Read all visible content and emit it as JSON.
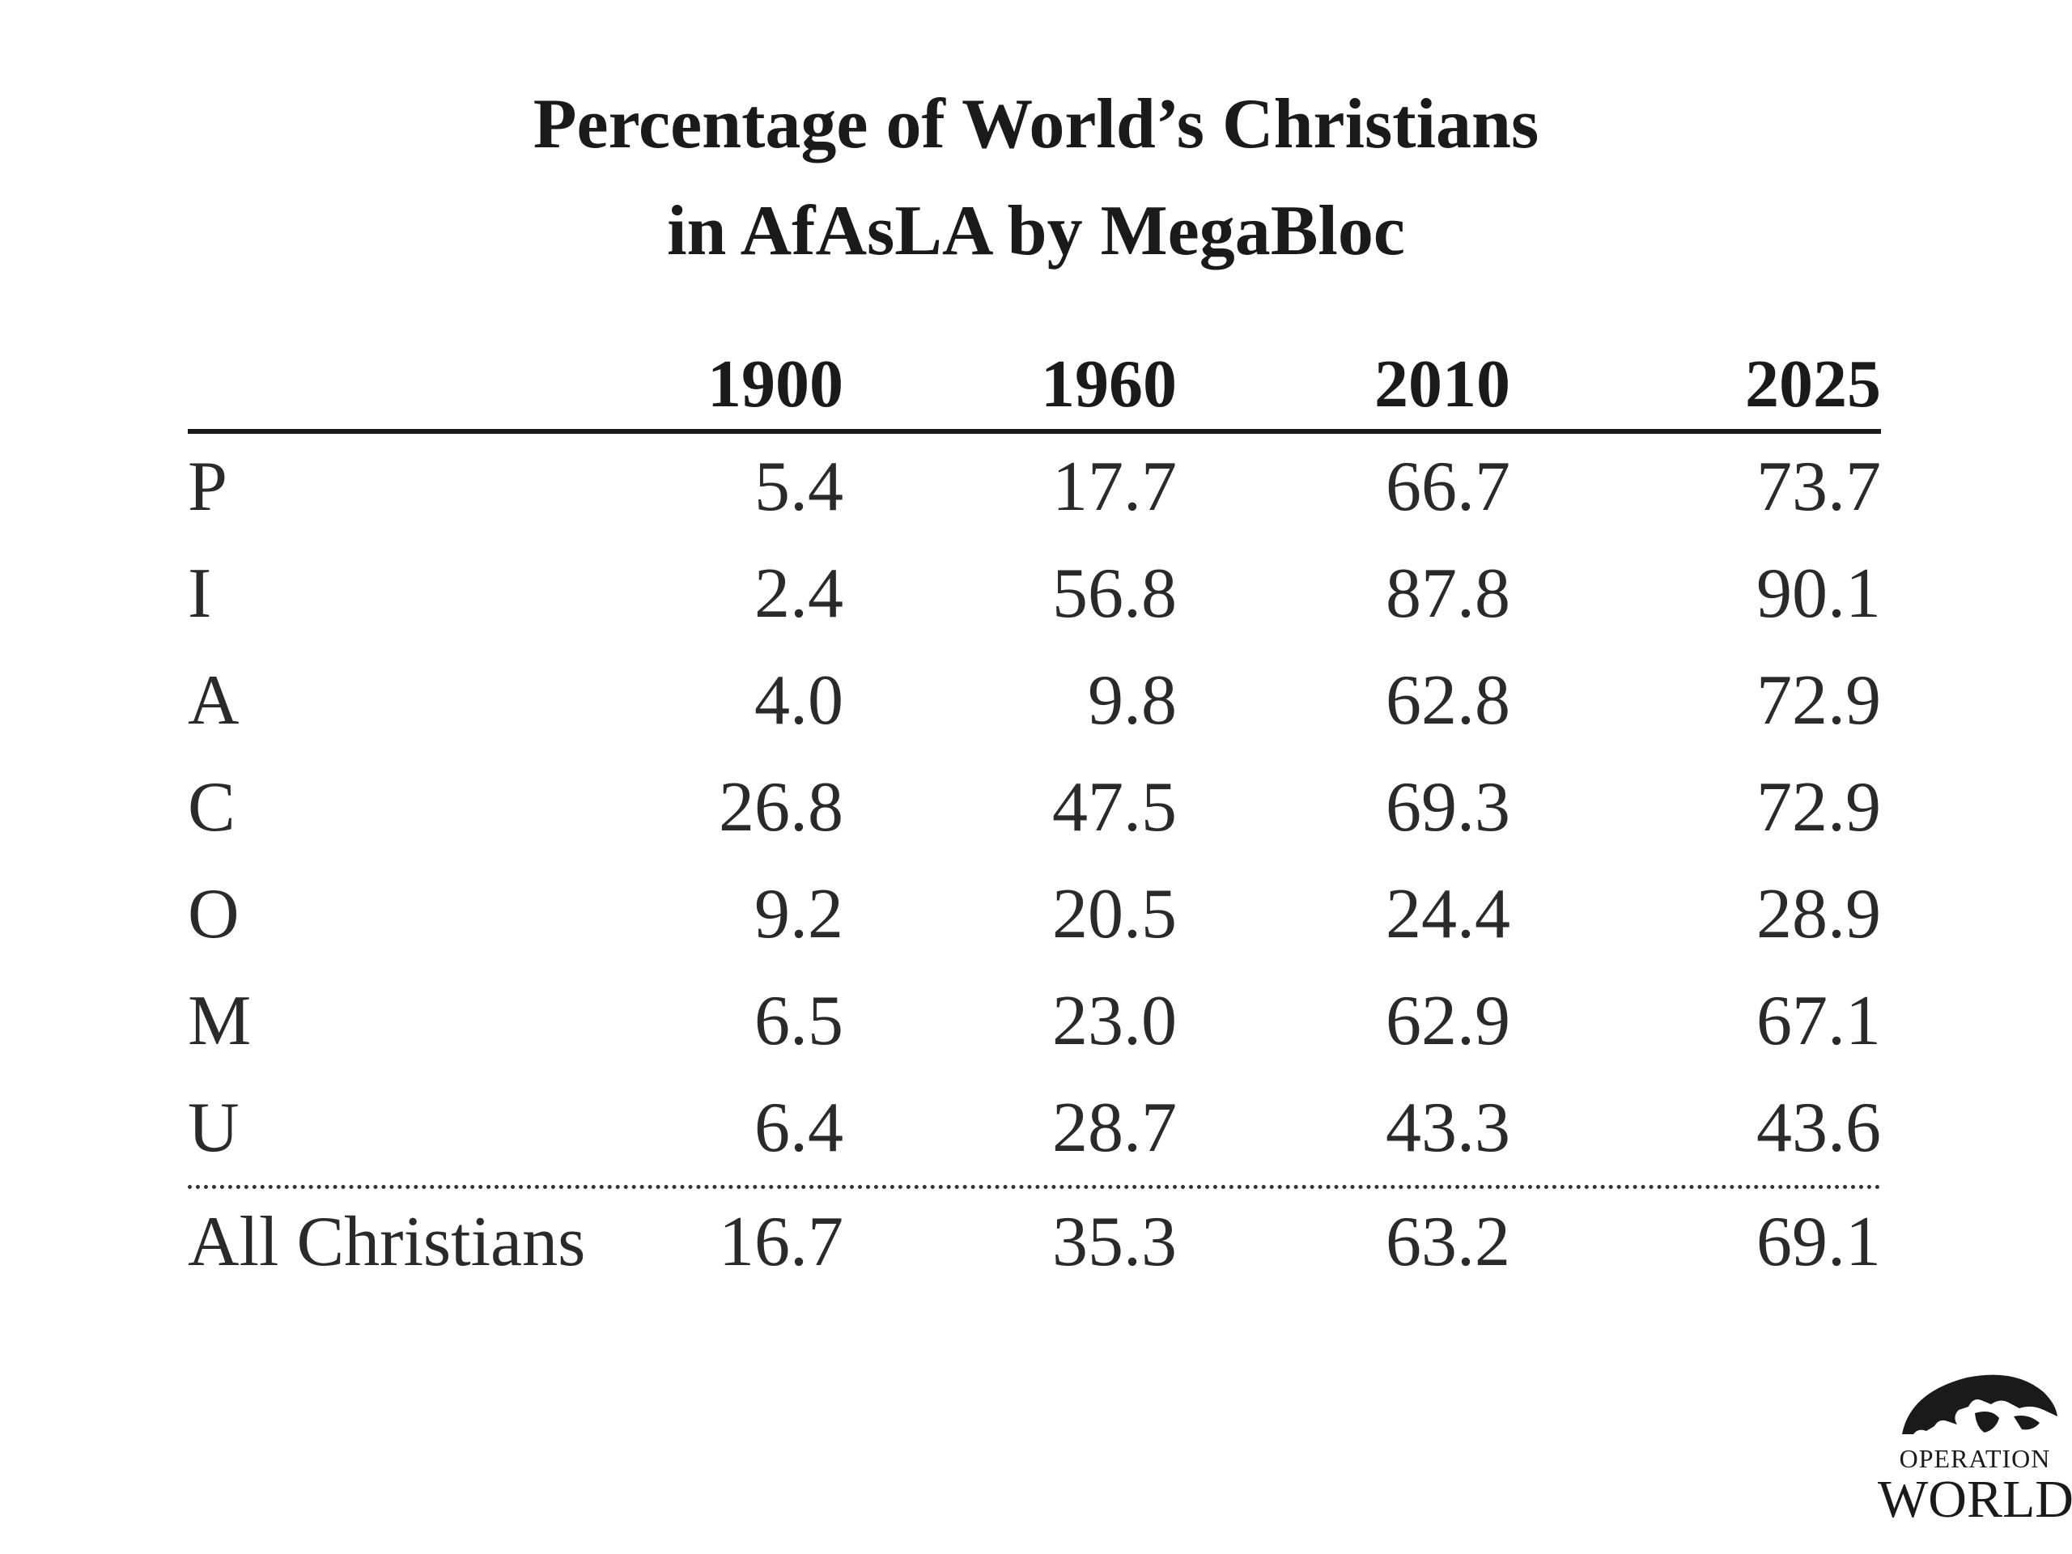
{
  "chart_data": {
    "type": "table",
    "title": "Percentage of World’s Christians in AfAsLA by MegaBloc",
    "title_lines": [
      "Percentage of World’s Christians",
      "in AfAsLA by MegaBloc"
    ],
    "columns": [
      "1900",
      "1960",
      "2010",
      "2025"
    ],
    "rows": [
      {
        "label": "P",
        "values": [
          "5.4",
          "17.7",
          "66.7",
          "73.7"
        ]
      },
      {
        "label": "I",
        "values": [
          "2.4",
          "56.8",
          "87.8",
          "90.1"
        ]
      },
      {
        "label": "A",
        "values": [
          "4.0",
          "9.8",
          "62.8",
          "72.9"
        ]
      },
      {
        "label": "C",
        "values": [
          "26.8",
          "47.5",
          "69.3",
          "72.9"
        ]
      },
      {
        "label": "O",
        "values": [
          "9.2",
          "20.5",
          "24.4",
          "28.9"
        ]
      },
      {
        "label": "M",
        "values": [
          "6.5",
          "23.0",
          "62.9",
          "67.1"
        ]
      },
      {
        "label": "U",
        "values": [
          "6.4",
          "28.7",
          "43.3",
          "43.6"
        ]
      }
    ],
    "total": {
      "label": "All Christians",
      "values": [
        "16.7",
        "35.3",
        "63.2",
        "69.1"
      ]
    }
  },
  "logo": {
    "line1": "OPERATION",
    "line2": "WORLD",
    "icon": "globe-icon"
  }
}
